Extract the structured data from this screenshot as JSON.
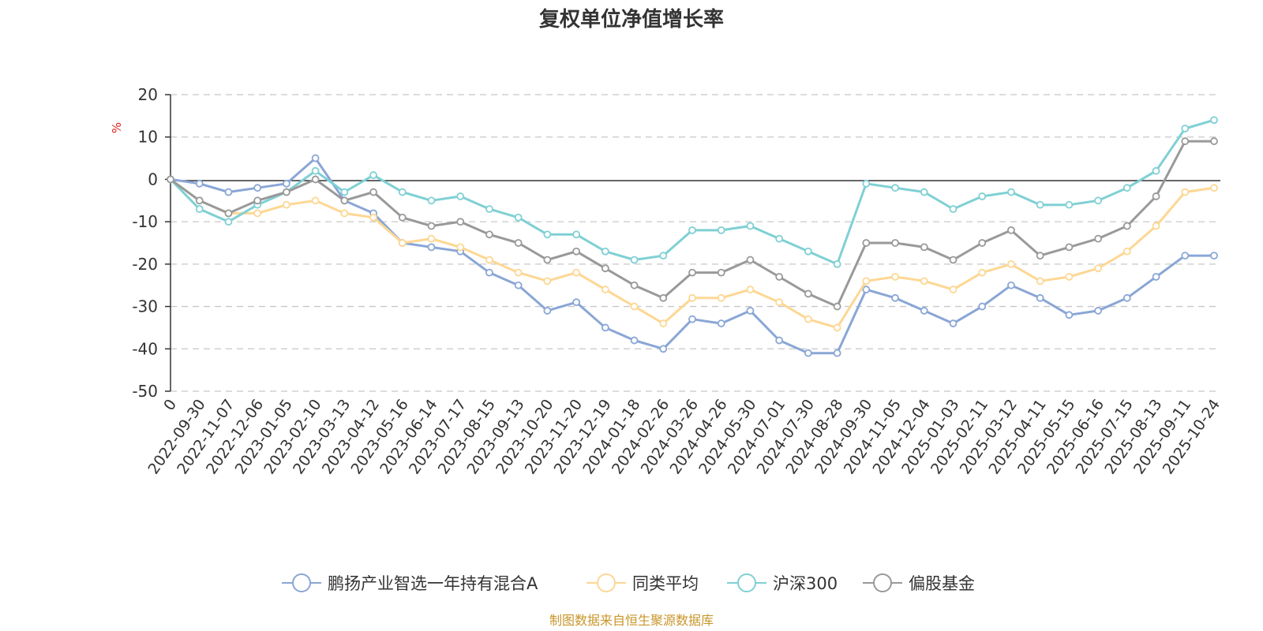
{
  "chart_data": {
    "type": "line",
    "title": "复权单位净值增长率",
    "ylabel": "%",
    "ylim": [
      -50,
      20
    ],
    "yticks": [
      "20",
      "10",
      "0",
      "-10",
      "-20",
      "-30",
      "-40",
      "-50"
    ],
    "categories": [
      "0",
      "2022-09-30",
      "2022-11-07",
      "2022-12-06",
      "2023-01-05",
      "2023-02-10",
      "2023-03-13",
      "2023-04-12",
      "2023-05-16",
      "2023-06-14",
      "2023-07-17",
      "2023-08-15",
      "2023-09-13",
      "2023-10-20",
      "2023-11-20",
      "2023-12-19",
      "2024-01-18",
      "2024-02-26",
      "2024-03-26",
      "2024-04-26",
      "2024-05-30",
      "2024-07-01",
      "2024-07-30",
      "2024-08-28",
      "2024-09-30",
      "2024-11-05",
      "2024-12-04",
      "2025-01-03",
      "2025-02-11",
      "2025-03-12",
      "2025-04-11",
      "2025-05-15",
      "2025-06-16",
      "2025-07-15",
      "2025-08-13",
      "2025-09-11",
      "2025-10-24"
    ],
    "series": [
      {
        "name": "鹏扬产业智选一年持有混合A",
        "color": "#8aa6d6",
        "values": [
          0,
          -1,
          -3,
          -2,
          -1,
          5,
          -5,
          -8,
          -15,
          -16,
          -17,
          -22,
          -25,
          -31,
          -29,
          -35,
          -38,
          -40,
          -33,
          -34,
          -31,
          -38,
          -41,
          -41,
          -26,
          -28,
          -31,
          -34,
          -30,
          -25,
          -28,
          -32,
          -31,
          -28,
          -23,
          -18,
          -18
        ]
      },
      {
        "name": "同类平均",
        "color": "#fdd793",
        "values": [
          0,
          -5,
          -8,
          -8,
          -6,
          -5,
          -8,
          -9,
          -15,
          -14,
          -16,
          -19,
          -22,
          -24,
          -22,
          -26,
          -30,
          -34,
          -28,
          -28,
          -26,
          -29,
          -33,
          -35,
          -24,
          -23,
          -24,
          -26,
          -22,
          -20,
          -24,
          -23,
          -21,
          -17,
          -11,
          -3,
          -2
        ]
      },
      {
        "name": "沪深300",
        "color": "#7fd0d4",
        "values": [
          0,
          -7,
          -10,
          -6,
          -3,
          2,
          -3,
          1,
          -3,
          -5,
          -4,
          -7,
          -9,
          -13,
          -13,
          -17,
          -19,
          -18,
          -12,
          -12,
          -11,
          -14,
          -17,
          -20,
          -1,
          -2,
          -3,
          -7,
          -4,
          -3,
          -6,
          -6,
          -5,
          -2,
          2,
          12,
          14
        ]
      },
      {
        "name": "偏股基金",
        "color": "#999999",
        "values": [
          0,
          -5,
          -8,
          -5,
          -3,
          0,
          -5,
          -3,
          -9,
          -11,
          -10,
          -13,
          -15,
          -19,
          -17,
          -21,
          -25,
          -28,
          -22,
          -22,
          -19,
          -23,
          -27,
          -30,
          -15,
          -15,
          -16,
          -19,
          -15,
          -12,
          -18,
          -16,
          -14,
          -11,
          -4,
          9,
          9
        ]
      }
    ]
  },
  "footer": {
    "source": "制图数据来自恒生聚源数据库"
  }
}
